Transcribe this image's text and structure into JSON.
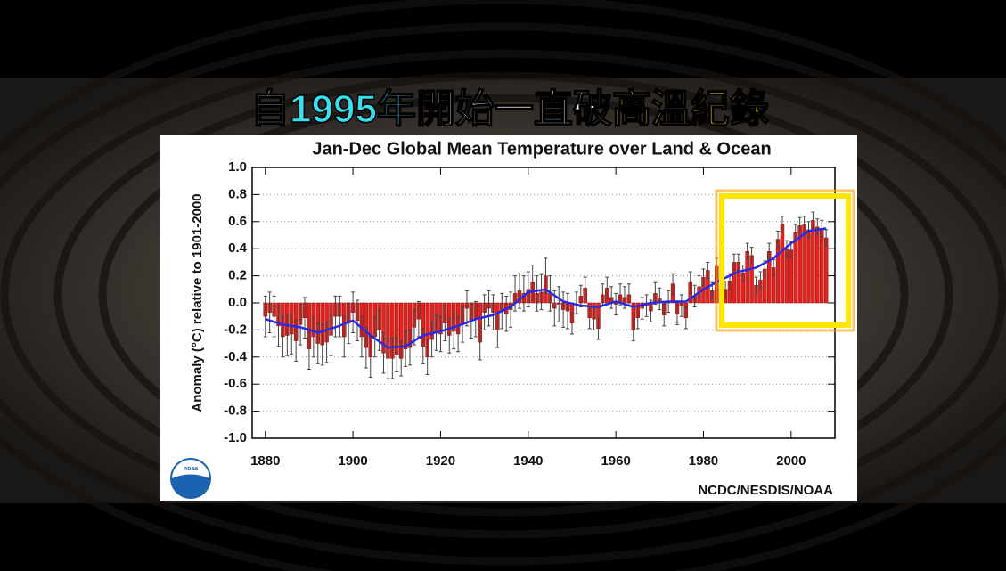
{
  "headline": [
    {
      "text": "自",
      "color": "#ffffff"
    },
    {
      "text": "1995年",
      "color": "#36e0ef"
    },
    {
      "text": "開始一直破",
      "color": "#ffffff"
    },
    {
      "text": "高溫紀錄",
      "color": "#ffe600"
    }
  ],
  "chart_data": {
    "type": "bar",
    "title": "Jan-Dec Global Mean Temperature over Land & Ocean",
    "y_label": "Anomaly (°C) relative to 1901-2000",
    "source": "NCDC/NESDIS/NOAA",
    "logo_text": "noaa",
    "xlim": [
      1877,
      2010
    ],
    "xticks": [
      1880,
      1900,
      1920,
      1940,
      1960,
      1980,
      2000
    ],
    "ylim": [
      -1,
      1
    ],
    "yticks": [
      {
        "value": 1,
        "label": "1.0"
      },
      0.8,
      0.6,
      0.4,
      0.2,
      {
        "value": 0,
        "label": "0.0"
      },
      -0.2,
      -0.4,
      -0.6,
      -0.8,
      {
        "value": -1,
        "label": "-1.0"
      }
    ],
    "grid": true,
    "x": [
      1880,
      1881,
      1882,
      1883,
      1884,
      1885,
      1886,
      1887,
      1888,
      1889,
      1890,
      1891,
      1892,
      1893,
      1894,
      1895,
      1896,
      1897,
      1898,
      1899,
      1900,
      1901,
      1902,
      1903,
      1904,
      1905,
      1906,
      1907,
      1908,
      1909,
      1910,
      1911,
      1912,
      1913,
      1914,
      1915,
      1916,
      1917,
      1918,
      1919,
      1920,
      1921,
      1922,
      1923,
      1924,
      1925,
      1926,
      1927,
      1928,
      1929,
      1930,
      1931,
      1932,
      1933,
      1934,
      1935,
      1936,
      1937,
      1938,
      1939,
      1940,
      1941,
      1942,
      1943,
      1944,
      1945,
      1946,
      1947,
      1948,
      1949,
      1950,
      1951,
      1952,
      1953,
      1954,
      1955,
      1956,
      1957,
      1958,
      1959,
      1960,
      1961,
      1962,
      1963,
      1964,
      1965,
      1966,
      1967,
      1968,
      1969,
      1970,
      1971,
      1972,
      1973,
      1974,
      1975,
      1976,
      1977,
      1978,
      1979,
      1980,
      1981,
      1982,
      1983,
      1984,
      1985,
      1986,
      1987,
      1988,
      1989,
      1990,
      1991,
      1992,
      1993,
      1994,
      1995,
      1996,
      1997,
      1998,
      1999,
      2000,
      2001,
      2002,
      2003,
      2004,
      2005,
      2006,
      2007,
      2008
    ],
    "bars": {
      "color": "#e8211c",
      "error_color": "#444444",
      "values": [
        -0.1,
        -0.07,
        -0.1,
        -0.17,
        -0.25,
        -0.24,
        -0.23,
        -0.28,
        -0.16,
        -0.11,
        -0.34,
        -0.25,
        -0.3,
        -0.31,
        -0.29,
        -0.24,
        -0.1,
        -0.1,
        -0.25,
        -0.15,
        -0.07,
        -0.13,
        -0.25,
        -0.33,
        -0.4,
        -0.25,
        -0.2,
        -0.37,
        -0.41,
        -0.41,
        -0.38,
        -0.41,
        -0.34,
        -0.33,
        -0.18,
        -0.12,
        -0.32,
        -0.4,
        -0.27,
        -0.22,
        -0.23,
        -0.15,
        -0.24,
        -0.21,
        -0.23,
        -0.16,
        -0.04,
        -0.13,
        -0.12,
        -0.29,
        -0.07,
        -0.04,
        -0.07,
        -0.2,
        -0.06,
        -0.08,
        -0.05,
        0.07,
        0.09,
        0.07,
        0.1,
        0.15,
        0.07,
        0.08,
        0.2,
        0.07,
        -0.04,
        -0.01,
        -0.05,
        -0.06,
        -0.15,
        0.0,
        0.05,
        0.11,
        -0.11,
        -0.12,
        -0.19,
        0.06,
        0.11,
        0.04,
        -0.01,
        0.06,
        0.04,
        0.06,
        -0.2,
        -0.11,
        -0.04,
        -0.02,
        -0.06,
        0.07,
        0.03,
        -0.09,
        0.01,
        0.14,
        -0.08,
        -0.02,
        -0.11,
        0.15,
        0.05,
        0.12,
        0.19,
        0.24,
        0.09,
        0.27,
        0.11,
        0.1,
        0.16,
        0.3,
        0.3,
        0.22,
        0.38,
        0.35,
        0.13,
        0.17,
        0.25,
        0.38,
        0.26,
        0.47,
        0.58,
        0.4,
        0.39,
        0.52,
        0.57,
        0.58,
        0.54,
        0.61,
        0.56,
        0.55,
        0.48
      ],
      "errors": [
        0.15,
        0.15,
        0.15,
        0.15,
        0.15,
        0.15,
        0.15,
        0.15,
        0.15,
        0.15,
        0.15,
        0.15,
        0.15,
        0.15,
        0.15,
        0.15,
        0.15,
        0.15,
        0.15,
        0.15,
        0.15,
        0.15,
        0.15,
        0.15,
        0.15,
        0.15,
        0.15,
        0.15,
        0.15,
        0.15,
        0.13,
        0.13,
        0.13,
        0.13,
        0.13,
        0.13,
        0.13,
        0.13,
        0.13,
        0.13,
        0.13,
        0.13,
        0.13,
        0.13,
        0.13,
        0.13,
        0.13,
        0.13,
        0.13,
        0.13,
        0.13,
        0.13,
        0.13,
        0.13,
        0.13,
        0.13,
        0.13,
        0.13,
        0.13,
        0.13,
        0.13,
        0.13,
        0.13,
        0.13,
        0.13,
        0.13,
        0.13,
        0.13,
        0.13,
        0.13,
        0.08,
        0.08,
        0.08,
        0.08,
        0.08,
        0.08,
        0.08,
        0.08,
        0.08,
        0.08,
        0.08,
        0.08,
        0.08,
        0.08,
        0.08,
        0.08,
        0.08,
        0.08,
        0.08,
        0.08,
        0.08,
        0.08,
        0.08,
        0.08,
        0.08,
        0.08,
        0.08,
        0.08,
        0.08,
        0.08,
        0.06,
        0.06,
        0.06,
        0.06,
        0.06,
        0.06,
        0.06,
        0.06,
        0.06,
        0.06,
        0.06,
        0.06,
        0.06,
        0.06,
        0.06,
        0.06,
        0.06,
        0.06,
        0.06,
        0.06,
        0.06,
        0.06,
        0.06,
        0.06,
        0.06,
        0.06,
        0.06,
        0.06,
        0.06
      ]
    },
    "trend": {
      "color": "#2a2ae6",
      "x": [
        1880,
        1884,
        1888,
        1892,
        1896,
        1900,
        1904,
        1908,
        1912,
        1916,
        1920,
        1924,
        1928,
        1932,
        1936,
        1940,
        1944,
        1948,
        1952,
        1956,
        1960,
        1964,
        1968,
        1972,
        1976,
        1980,
        1984,
        1988,
        1992,
        1996,
        2000,
        2004,
        2008
      ],
      "values": [
        -0.12,
        -0.16,
        -0.18,
        -0.22,
        -0.18,
        -0.13,
        -0.24,
        -0.33,
        -0.32,
        -0.24,
        -0.21,
        -0.17,
        -0.12,
        -0.09,
        -0.03,
        0.08,
        0.1,
        0.01,
        -0.02,
        -0.03,
        0.01,
        -0.03,
        0.0,
        0.01,
        0.01,
        0.1,
        0.17,
        0.23,
        0.26,
        0.33,
        0.44,
        0.53,
        0.55
      ]
    }
  }
}
